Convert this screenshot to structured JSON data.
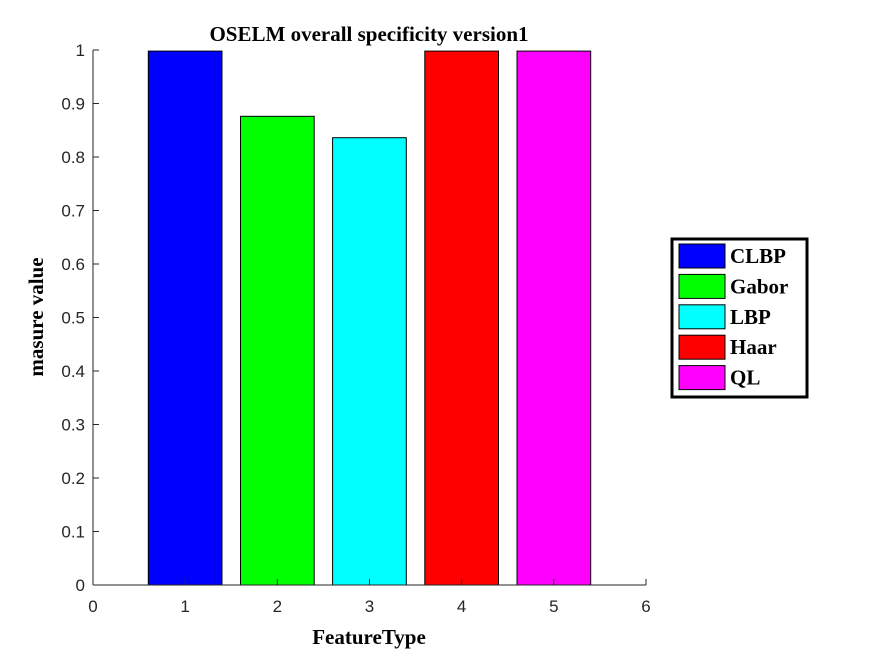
{
  "chart_data": {
    "type": "bar",
    "title": "OSELM overall specificity version1",
    "xlabel": "FeatureType",
    "ylabel": "masure value",
    "xlim": [
      0,
      6
    ],
    "ylim": [
      0,
      1
    ],
    "xticks": [
      "0",
      "1",
      "2",
      "3",
      "4",
      "5",
      "6"
    ],
    "yticks": [
      "0",
      "0.1",
      "0.2",
      "0.3",
      "0.4",
      "0.5",
      "0.6",
      "0.7",
      "0.8",
      "0.9",
      "1"
    ],
    "grid": false,
    "legend_position": "right",
    "series": [
      {
        "name": "CLBP",
        "x": 1,
        "value": 0.998,
        "color": "#0000ff"
      },
      {
        "name": "Gabor",
        "x": 2,
        "value": 0.876,
        "color": "#00ff00"
      },
      {
        "name": "LBP",
        "x": 3,
        "value": 0.836,
        "color": "#00ffff"
      },
      {
        "name": "Haar",
        "x": 4,
        "value": 0.998,
        "color": "#ff0000"
      },
      {
        "name": "QL",
        "x": 5,
        "value": 0.998,
        "color": "#ff00ff"
      }
    ]
  }
}
